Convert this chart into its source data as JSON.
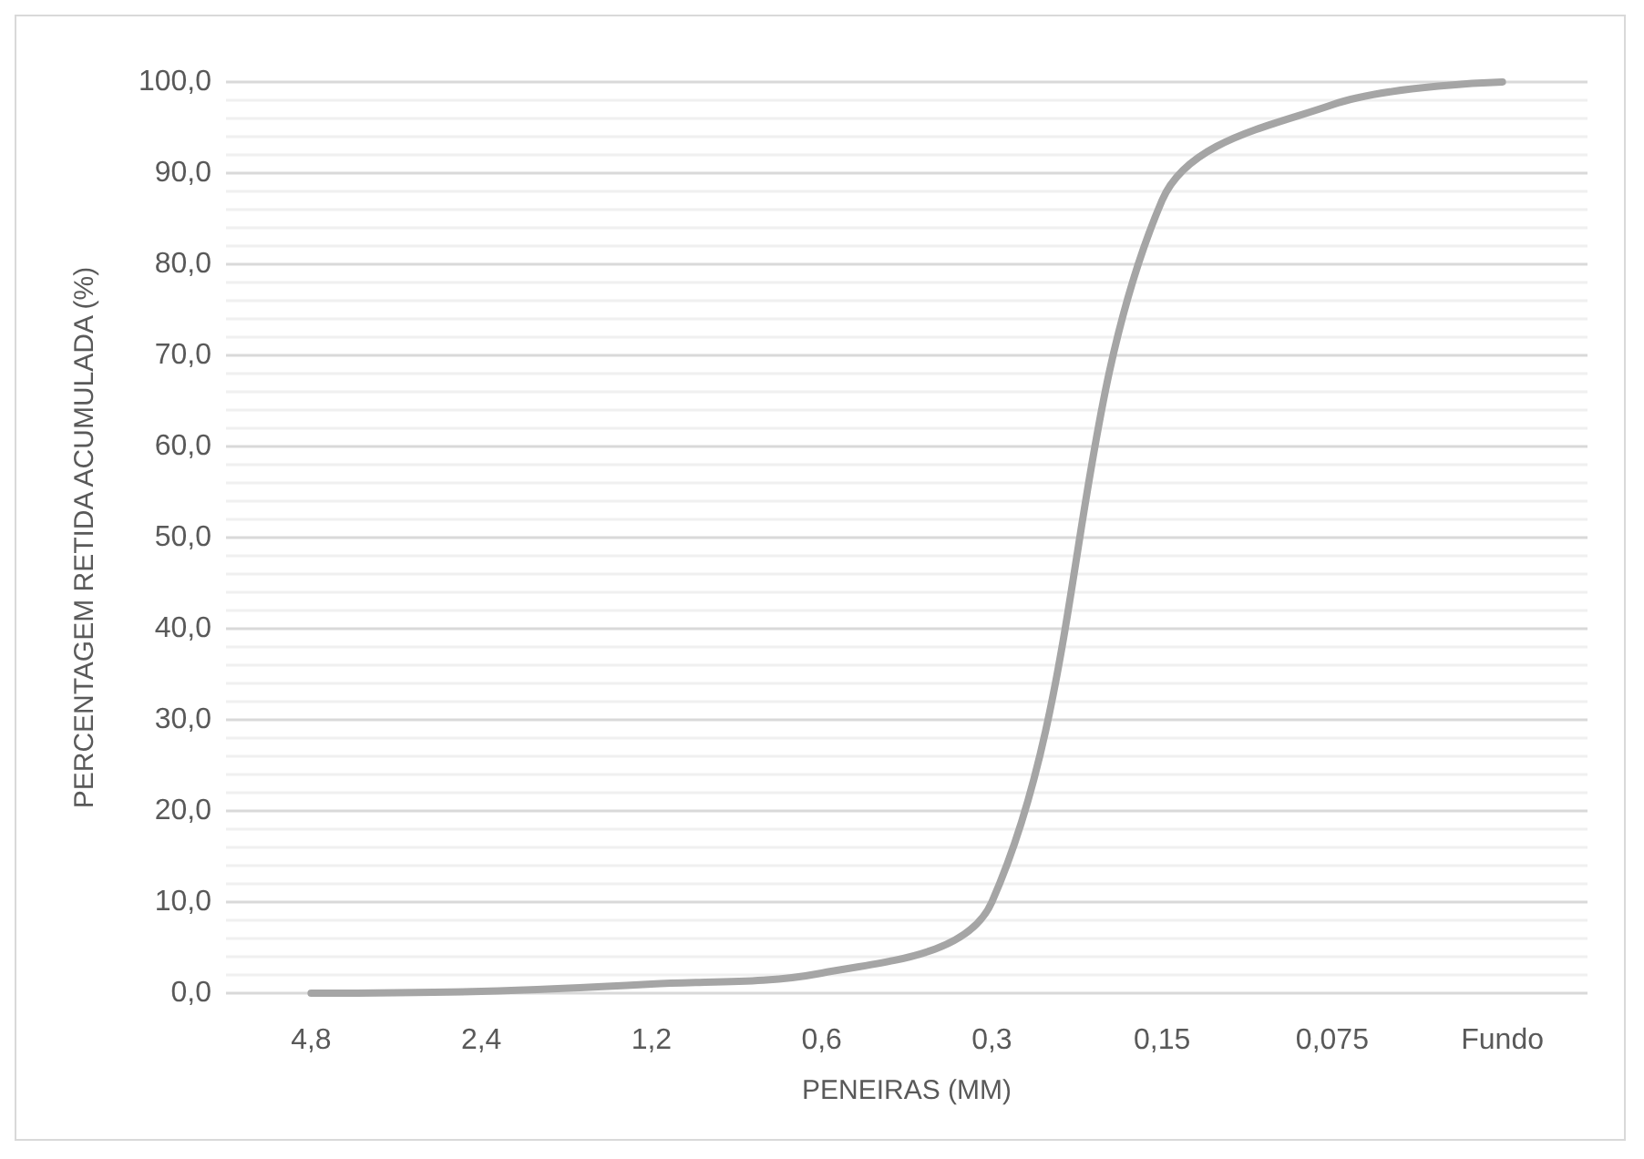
{
  "chart_data": {
    "type": "line",
    "xlabel": "PENEIRAS (MM)",
    "ylabel": "PERCENTAGEM RETIDA ACUMULADA (%)",
    "categories": [
      "4,8",
      "2,4",
      "1,2",
      "0,6",
      "0,3",
      "0,15",
      "0,075",
      "Fundo"
    ],
    "series": [
      {
        "color": "#a5a5a5",
        "values": [
          0,
          0.2,
          1.0,
          2.2,
          10,
          87,
          97.5,
          100
        ]
      }
    ],
    "ylim": [
      0,
      100
    ],
    "yticks": [
      {
        "value": 0,
        "label": "0,0"
      },
      {
        "value": 10,
        "label": "10,0"
      },
      {
        "value": 20,
        "label": "20,0"
      },
      {
        "value": 30,
        "label": "30,0"
      },
      {
        "value": 40,
        "label": "40,0"
      },
      {
        "value": 50,
        "label": "50,0"
      },
      {
        "value": 60,
        "label": "60,0"
      },
      {
        "value": 70,
        "label": "70,0"
      },
      {
        "value": 80,
        "label": "80,0"
      },
      {
        "value": 90,
        "label": "90,0"
      },
      {
        "value": 100,
        "label": "100,0"
      }
    ],
    "grid": "y",
    "marker": "none",
    "line_style": "solid"
  }
}
